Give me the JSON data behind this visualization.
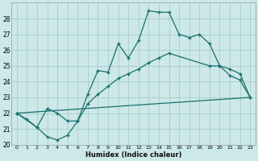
{
  "xlabel": "Humidex (Indice chaleur)",
  "xlim": [
    -0.5,
    23.5
  ],
  "ylim": [
    20,
    29
  ],
  "yticks": [
    20,
    21,
    22,
    23,
    24,
    25,
    26,
    27,
    28
  ],
  "xticks": [
    0,
    1,
    2,
    3,
    4,
    5,
    6,
    7,
    8,
    9,
    10,
    11,
    12,
    13,
    14,
    15,
    16,
    17,
    18,
    19,
    20,
    21,
    22,
    23
  ],
  "bg_color": "#cce8e8",
  "grid_color": "#aacccc",
  "line_color": "#1a6e6e",
  "line1_x": [
    0,
    1,
    2,
    3,
    4,
    5,
    6,
    7,
    8,
    9,
    10,
    11,
    12,
    13,
    14,
    15,
    16,
    17,
    18,
    19,
    20,
    21,
    22,
    23
  ],
  "line1_y": [
    22.0,
    21.6,
    21.1,
    20.5,
    20.3,
    20.6,
    21.5,
    23.2,
    24.7,
    24.6,
    26.4,
    25.5,
    26.6,
    28.5,
    28.4,
    28.4,
    27.0,
    26.8,
    27.0,
    26.4,
    25.0,
    24.4,
    24.1,
    23.0
  ],
  "line2_x": [
    0,
    2,
    3,
    4,
    5,
    6,
    7,
    8,
    9,
    10,
    11,
    12,
    13,
    14,
    15,
    19,
    20,
    21,
    22,
    23
  ],
  "line2_y": [
    22.0,
    21.1,
    22.3,
    22.0,
    21.5,
    21.5,
    22.6,
    23.2,
    23.7,
    24.2,
    24.5,
    24.8,
    25.2,
    25.5,
    25.8,
    25.0,
    25.0,
    24.8,
    24.5,
    23.0
  ],
  "line3_x": [
    0,
    23
  ],
  "line3_y": [
    22.0,
    23.0
  ]
}
